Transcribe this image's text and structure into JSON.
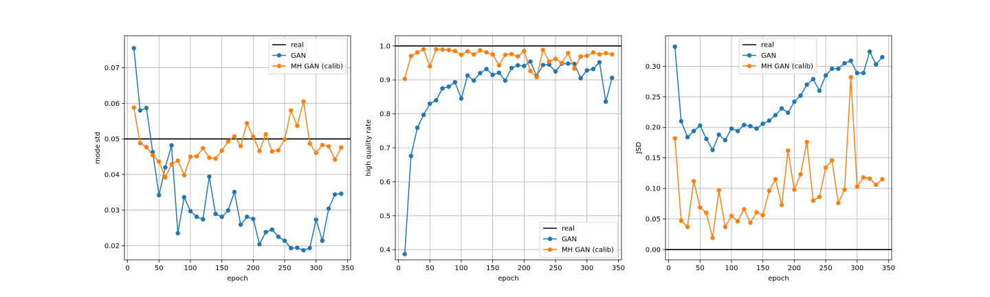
{
  "chart_data": [
    {
      "type": "line",
      "xlabel": "epoch",
      "ylabel": "mode std",
      "xlim": [
        -5,
        355
      ],
      "ylim": [
        0.016,
        0.079
      ],
      "xticks": [
        0,
        50,
        100,
        150,
        200,
        250,
        300,
        350
      ],
      "yticks": [
        0.02,
        0.03,
        0.04,
        0.05,
        0.06,
        0.07
      ],
      "ytick_labels": [
        "0.02",
        "0.03",
        "0.04",
        "0.05",
        "0.06",
        "0.07"
      ],
      "grid": true,
      "legend_position": "top-right",
      "reference_line": {
        "name": "real",
        "value": 0.05,
        "color": "#000000"
      },
      "x": [
        10,
        20,
        30,
        40,
        50,
        60,
        70,
        80,
        90,
        100,
        110,
        120,
        130,
        140,
        150,
        160,
        170,
        180,
        190,
        200,
        210,
        220,
        230,
        240,
        250,
        260,
        270,
        280,
        290,
        300,
        310,
        320,
        330,
        340
      ],
      "series": [
        {
          "name": "GAN",
          "color": "#1f77b4",
          "values": [
            0.0755,
            0.058,
            0.0587,
            0.0463,
            0.0342,
            0.042,
            0.0482,
            0.0235,
            0.0336,
            0.0297,
            0.0281,
            0.0274,
            0.0394,
            0.0289,
            0.0281,
            0.0299,
            0.0351,
            0.0259,
            0.0281,
            0.0275,
            0.0204,
            0.0238,
            0.0245,
            0.0225,
            0.0214,
            0.0193,
            0.0194,
            0.0187,
            0.0193,
            0.0273,
            0.0214,
            0.0304,
            0.0344,
            0.0346
          ]
        },
        {
          "name": "MH GAN (calib)",
          "color": "#ff7f0e",
          "values": [
            0.0588,
            0.0488,
            0.0477,
            0.0454,
            0.0436,
            0.0392,
            0.0429,
            0.0439,
            0.0398,
            0.045,
            0.0451,
            0.0474,
            0.0447,
            0.0445,
            0.0467,
            0.0493,
            0.0507,
            0.048,
            0.0544,
            0.0506,
            0.0466,
            0.0513,
            0.0465,
            0.0468,
            0.0499,
            0.058,
            0.0537,
            0.0605,
            0.0487,
            0.0461,
            0.0483,
            0.0479,
            0.0442,
            0.0476
          ]
        }
      ]
    },
    {
      "type": "line",
      "xlabel": "epoch",
      "ylabel": "high quality rate",
      "xlim": [
        -5,
        355
      ],
      "ylim": [
        0.37,
        1.03
      ],
      "xticks": [
        0,
        50,
        100,
        150,
        200,
        250,
        300,
        350
      ],
      "yticks": [
        0.4,
        0.5,
        0.6,
        0.7,
        0.8,
        0.9,
        1.0
      ],
      "ytick_labels": [
        "0.4",
        "0.5",
        "0.6",
        "0.7",
        "0.8",
        "0.9",
        "1.0"
      ],
      "grid": true,
      "legend_position": "bottom-right",
      "reference_line": {
        "name": "real",
        "value": 1.0,
        "color": "#000000"
      },
      "x": [
        10,
        20,
        30,
        40,
        50,
        60,
        70,
        80,
        90,
        100,
        110,
        120,
        130,
        140,
        150,
        160,
        170,
        180,
        190,
        200,
        210,
        220,
        230,
        240,
        250,
        260,
        270,
        280,
        290,
        300,
        310,
        320,
        330,
        340
      ],
      "series": [
        {
          "name": "GAN",
          "color": "#1f77b4",
          "values": [
            0.387,
            0.676,
            0.759,
            0.797,
            0.83,
            0.84,
            0.875,
            0.88,
            0.893,
            0.845,
            0.913,
            0.898,
            0.92,
            0.932,
            0.915,
            0.921,
            0.898,
            0.935,
            0.943,
            0.941,
            0.954,
            0.912,
            0.944,
            0.945,
            0.925,
            0.948,
            0.948,
            0.947,
            0.905,
            0.928,
            0.932,
            0.952,
            0.836,
            0.906
          ]
        },
        {
          "name": "MH GAN (calib)",
          "color": "#ff7f0e",
          "values": [
            0.903,
            0.97,
            0.981,
            0.99,
            0.94,
            0.99,
            0.989,
            0.988,
            0.985,
            0.974,
            0.984,
            0.975,
            0.987,
            0.981,
            0.975,
            0.943,
            0.974,
            0.976,
            0.969,
            0.985,
            0.926,
            0.908,
            0.988,
            0.954,
            0.962,
            0.95,
            0.979,
            0.933,
            0.969,
            0.971,
            0.981,
            0.975,
            0.979,
            0.975
          ]
        }
      ]
    },
    {
      "type": "line",
      "xlabel": "epoch",
      "ylabel": "JSD",
      "xlim": [
        -5,
        355
      ],
      "ylim": [
        -0.017,
        0.35
      ],
      "xticks": [
        0,
        50,
        100,
        150,
        200,
        250,
        300,
        350
      ],
      "yticks": [
        0.0,
        0.05,
        0.1,
        0.15,
        0.2,
        0.25,
        0.3
      ],
      "ytick_labels": [
        "0.00",
        "0.05",
        "0.10",
        "0.15",
        "0.20",
        "0.25",
        "0.30"
      ],
      "grid": true,
      "legend_position": "top-center",
      "reference_line": {
        "name": "real",
        "value": 0.0,
        "color": "#000000"
      },
      "x": [
        10,
        20,
        30,
        40,
        50,
        60,
        70,
        80,
        90,
        100,
        110,
        120,
        130,
        140,
        150,
        160,
        170,
        180,
        190,
        200,
        210,
        220,
        230,
        240,
        250,
        260,
        270,
        280,
        290,
        300,
        310,
        320,
        330,
        340
      ],
      "series": [
        {
          "name": "GAN",
          "color": "#1f77b4",
          "values": [
            0.332,
            0.21,
            0.184,
            0.194,
            0.203,
            0.181,
            0.163,
            0.188,
            0.179,
            0.198,
            0.194,
            0.204,
            0.202,
            0.198,
            0.206,
            0.211,
            0.22,
            0.231,
            0.224,
            0.242,
            0.252,
            0.27,
            0.279,
            0.26,
            0.285,
            0.296,
            0.296,
            0.305,
            0.309,
            0.289,
            0.289,
            0.324,
            0.303,
            0.315
          ]
        },
        {
          "name": "MH GAN (calib)",
          "color": "#ff7f0e",
          "values": [
            0.182,
            0.047,
            0.037,
            0.112,
            0.069,
            0.06,
            0.019,
            0.097,
            0.037,
            0.055,
            0.046,
            0.066,
            0.044,
            0.061,
            0.056,
            0.096,
            0.115,
            0.073,
            0.162,
            0.098,
            0.123,
            0.176,
            0.08,
            0.086,
            0.134,
            0.146,
            0.076,
            0.098,
            0.282,
            0.103,
            0.118,
            0.116,
            0.106,
            0.115
          ]
        }
      ]
    }
  ]
}
